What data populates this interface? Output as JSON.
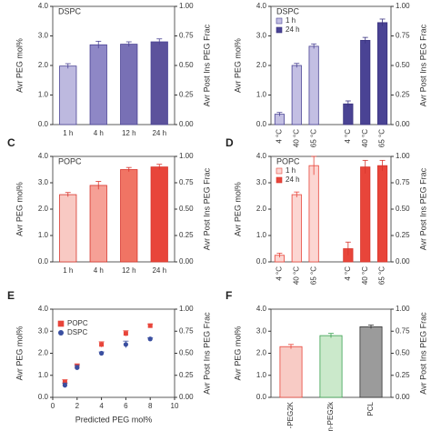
{
  "chart_data": [
    {
      "type": "bar",
      "label": "DSPC",
      "ylabel": "Avr PEG mol%",
      "y2label": "Avr Post Ins PEG Frac",
      "categories": [
        "1 h",
        "4 h",
        "12 h",
        "24 h"
      ],
      "values": [
        1.98,
        2.7,
        2.72,
        2.8
      ],
      "errors": [
        0.08,
        0.12,
        0.08,
        0.1
      ],
      "colors": [
        "#bdb9df",
        "#8e87c6",
        "#7870b5",
        "#5c529c"
      ],
      "edgecolor": "#4a4394",
      "ylim": [
        0,
        4
      ],
      "yticks": [
        {
          "value": 0,
          "label": "0.0"
        },
        {
          "value": 1,
          "label": "1.0"
        },
        {
          "value": 2,
          "label": "2.0"
        },
        {
          "value": 3,
          "label": "3.0"
        },
        {
          "value": 4,
          "label": "4.0"
        }
      ],
      "y2lim": [
        0,
        1
      ],
      "y2ticks": [
        {
          "value": 0,
          "label": "0.00"
        },
        {
          "value": 0.25,
          "label": "0.25"
        },
        {
          "value": 0.5,
          "label": "0.50"
        },
        {
          "value": 0.75,
          "label": "0.75"
        },
        {
          "value": 1,
          "label": "1.00"
        }
      ]
    },
    {
      "type": "bar",
      "label": "DSPC",
      "ylabel": "Avr PEG mol%",
      "y2label": "Avr Post Ins PEG Frac",
      "xtick_rotation": -90,
      "categories": [
        "4 °C",
        "40 °C",
        "65 °C",
        null,
        "4 °C",
        "40 °C",
        "65 °C"
      ],
      "series": [
        {
          "name": "1 h",
          "color": "#c3bfe3",
          "edgecolor": "#4a4394",
          "values": [
            0.35,
            2.0,
            2.65,
            null,
            null,
            null,
            null
          ],
          "errors": [
            0.06,
            0.07,
            0.08,
            null,
            null,
            null,
            null
          ]
        },
        {
          "name": "24 h",
          "color": "#4a4394",
          "edgecolor": "#3a3380",
          "values": [
            null,
            null,
            null,
            null,
            0.7,
            2.85,
            3.45
          ],
          "errors": [
            null,
            null,
            null,
            null,
            0.1,
            0.1,
            0.12
          ]
        }
      ],
      "ylim": [
        0,
        4
      ],
      "yticks": [
        {
          "value": 0,
          "label": "0.0"
        },
        {
          "value": 1,
          "label": "1.0"
        },
        {
          "value": 2,
          "label": "2.0"
        },
        {
          "value": 3,
          "label": "3.0"
        },
        {
          "value": 4,
          "label": "4.0"
        }
      ],
      "y2lim": [
        0,
        1
      ],
      "y2ticks": [
        {
          "value": 0,
          "label": "0.00"
        },
        {
          "value": 0.25,
          "label": "0.25"
        },
        {
          "value": 0.5,
          "label": "0.50"
        },
        {
          "value": 0.75,
          "label": "0.75"
        },
        {
          "value": 1,
          "label": "1.00"
        }
      ]
    },
    {
      "type": "bar",
      "panel": "C",
      "label": "POPC",
      "ylabel": "Avr PEG mol%",
      "y2label": "Avr Post Ins PEG Frac",
      "categories": [
        "1 h",
        "4 h",
        "12 h",
        "24 h"
      ],
      "values": [
        2.55,
        2.9,
        3.5,
        3.6
      ],
      "errors": [
        0.08,
        0.15,
        0.08,
        0.1
      ],
      "colors": [
        "#f8c9c3",
        "#f6a096",
        "#f07464",
        "#e8453a"
      ],
      "edgecolor": "#d8352c",
      "ylim": [
        0,
        4
      ],
      "yticks": [
        {
          "value": 0,
          "label": "0.0"
        },
        {
          "value": 1,
          "label": "1.0"
        },
        {
          "value": 2,
          "label": "2.0"
        },
        {
          "value": 3,
          "label": "3.0"
        },
        {
          "value": 4,
          "label": "4.0"
        }
      ],
      "y2lim": [
        0,
        1
      ],
      "y2ticks": [
        {
          "value": 0,
          "label": "0.00"
        },
        {
          "value": 0.25,
          "label": "0.25"
        },
        {
          "value": 0.5,
          "label": "0.50"
        },
        {
          "value": 0.75,
          "label": "0.75"
        },
        {
          "value": 1,
          "label": "1.00"
        }
      ]
    },
    {
      "type": "bar",
      "panel": "D",
      "label": "POPC",
      "ylabel": "Avr PEG mol%",
      "y2label": "Avr Post Ins PEG Frac",
      "xtick_rotation": -90,
      "categories": [
        "4 °C",
        "40 °C",
        "65 °C",
        null,
        "4 °C",
        "40 °C",
        "65 °C"
      ],
      "series": [
        {
          "name": "1 h",
          "color": "#fcd6d2",
          "edgecolor": "#e8453a",
          "values": [
            0.25,
            2.55,
            3.65,
            null,
            null,
            null,
            null
          ],
          "errors": [
            0.08,
            0.1,
            0.35,
            null,
            null,
            null,
            null
          ]
        },
        {
          "name": "24 h",
          "color": "#e8453a",
          "edgecolor": "#d8352c",
          "values": [
            null,
            null,
            null,
            null,
            0.5,
            3.6,
            3.65
          ],
          "errors": [
            null,
            null,
            null,
            null,
            0.25,
            0.25,
            0.2
          ]
        }
      ],
      "ylim": [
        0,
        4
      ],
      "yticks": [
        {
          "value": 0,
          "label": "0.0"
        },
        {
          "value": 1,
          "label": "1.0"
        },
        {
          "value": 2,
          "label": "2.0"
        },
        {
          "value": 3,
          "label": "3.0"
        },
        {
          "value": 4,
          "label": "4.0"
        }
      ],
      "y2lim": [
        0,
        1
      ],
      "y2ticks": [
        {
          "value": 0,
          "label": "0.00"
        },
        {
          "value": 0.25,
          "label": "0.25"
        },
        {
          "value": 0.5,
          "label": "0.50"
        },
        {
          "value": 0.75,
          "label": "0.75"
        },
        {
          "value": 1,
          "label": "1.00"
        }
      ]
    },
    {
      "type": "scatter",
      "panel": "E",
      "xlabel": "Predicted PEG mol%",
      "ylabel": "Avr PEG mol%",
      "y2label": "Avr Post Ins PEG Frac",
      "series": [
        {
          "name": "POPC",
          "color": "#e8453a",
          "marker": "square",
          "x": [
            1,
            2,
            4,
            6,
            8
          ],
          "values": [
            0.7,
            1.4,
            2.4,
            2.9,
            3.25
          ],
          "errors": [
            0.1,
            0.12,
            0.12,
            0.12,
            0.08
          ]
        },
        {
          "name": "DSPC",
          "color": "#3a4fa0",
          "marker": "circle",
          "x": [
            1,
            2,
            4,
            6,
            8
          ],
          "values": [
            0.55,
            1.35,
            2.0,
            2.4,
            2.65
          ],
          "errors": [
            0.1,
            0.1,
            0.06,
            0.15,
            0.05
          ]
        }
      ],
      "xlim": [
        0,
        10
      ],
      "xticks": [
        0,
        2,
        4,
        6,
        8,
        10
      ],
      "ylim": [
        0,
        4
      ],
      "yticks": [
        {
          "value": 0,
          "label": "0.0"
        },
        {
          "value": 1,
          "label": "1.0"
        },
        {
          "value": 2,
          "label": "2.0"
        },
        {
          "value": 3,
          "label": "3.0"
        },
        {
          "value": 4,
          "label": "4.0"
        }
      ],
      "y2lim": [
        0,
        1
      ],
      "y2ticks": [
        {
          "value": 0,
          "label": "0.00"
        },
        {
          "value": 0.25,
          "label": "0.25"
        },
        {
          "value": 0.5,
          "label": "0.50"
        },
        {
          "value": 0.75,
          "label": "0.75"
        },
        {
          "value": 1,
          "label": "1.00"
        }
      ]
    },
    {
      "type": "bar",
      "panel": "F",
      "ylabel": "Avr PEG mol%",
      "y2label": "Avr Post Ins PEG Frac",
      "xtick_rotation": -90,
      "categories": [
        "-PEG2K",
        "n-PEG2k",
        "PCL"
      ],
      "values": [
        2.3,
        2.8,
        3.2
      ],
      "errors": [
        0.1,
        0.1,
        0.08
      ],
      "colors": [
        "#f8cbc5",
        "#cbe9cb",
        "#9b9b9b"
      ],
      "edgecolors": [
        "#e8453a",
        "#3aa050",
        "#333333"
      ],
      "ylim": [
        0,
        4
      ],
      "yticks": [
        {
          "value": 0,
          "label": "0.0"
        },
        {
          "value": 1,
          "label": "1.0"
        },
        {
          "value": 2,
          "label": "2.0"
        },
        {
          "value": 3,
          "label": "3.0"
        },
        {
          "value": 4,
          "label": "4.0"
        }
      ],
      "y2lim": [
        0,
        1
      ],
      "y2ticks": [
        {
          "value": 0,
          "label": "0.00"
        },
        {
          "value": 0.25,
          "label": "0.25"
        },
        {
          "value": 0.5,
          "label": "0.50"
        },
        {
          "value": 0.75,
          "label": "0.75"
        },
        {
          "value": 1,
          "label": "1.00"
        }
      ]
    }
  ]
}
